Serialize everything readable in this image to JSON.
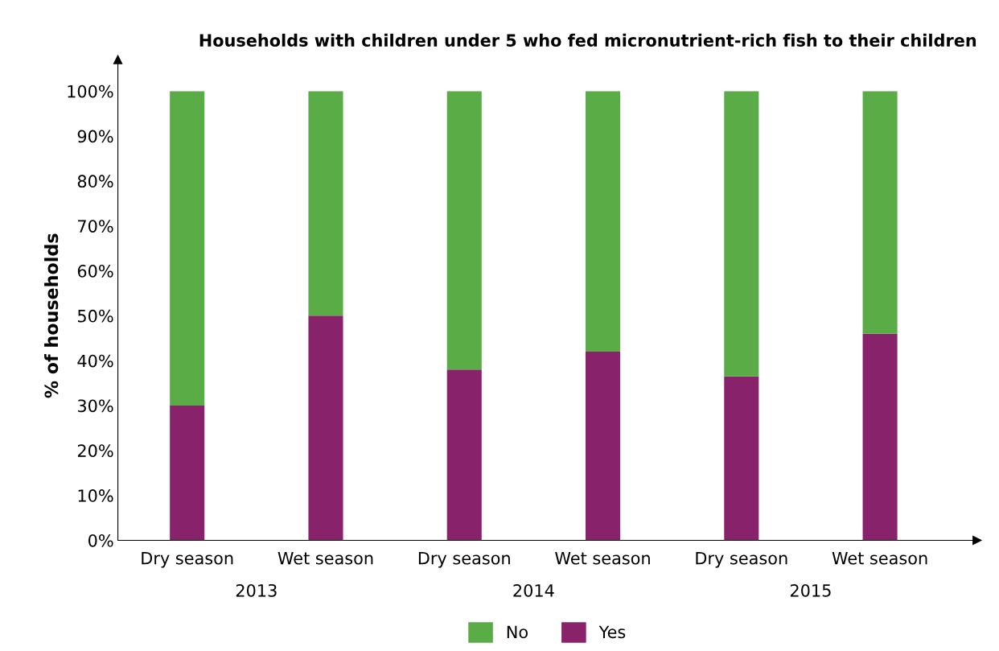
{
  "chart_data": {
    "type": "bar",
    "title": "Households with children under 5 who fed micronutrient-rich fish to their children",
    "ylabel": "% of households",
    "categories": [
      "Dry season",
      "Wet season",
      "Dry season",
      "Wet season",
      "Dry season",
      "Wet season"
    ],
    "annotations": [
      "2013",
      "2014",
      "2015"
    ],
    "stacked": true,
    "series": [
      {
        "name": "Yes",
        "color": "#88236b",
        "values": [
          30,
          50,
          38,
          42,
          36.5,
          46
        ]
      },
      {
        "name": "No",
        "color": "#5aac47",
        "values": [
          70,
          50,
          62,
          58,
          63.5,
          54
        ]
      }
    ],
    "ylim": [
      0,
      100
    ],
    "yticks": [
      {
        "value": 0,
        "label": "0%"
      },
      {
        "value": 10,
        "label": "10%"
      },
      {
        "value": 20,
        "label": "20%"
      },
      {
        "value": 30,
        "label": "30%"
      },
      {
        "value": 40,
        "label": "40%"
      },
      {
        "value": 50,
        "label": "50%"
      },
      {
        "value": 60,
        "label": "60%"
      },
      {
        "value": 70,
        "label": "70%"
      },
      {
        "value": 80,
        "label": "80%"
      },
      {
        "value": 90,
        "label": "90%"
      },
      {
        "value": 100,
        "label": "100%"
      }
    ],
    "grid": false,
    "legend": "bottom"
  }
}
